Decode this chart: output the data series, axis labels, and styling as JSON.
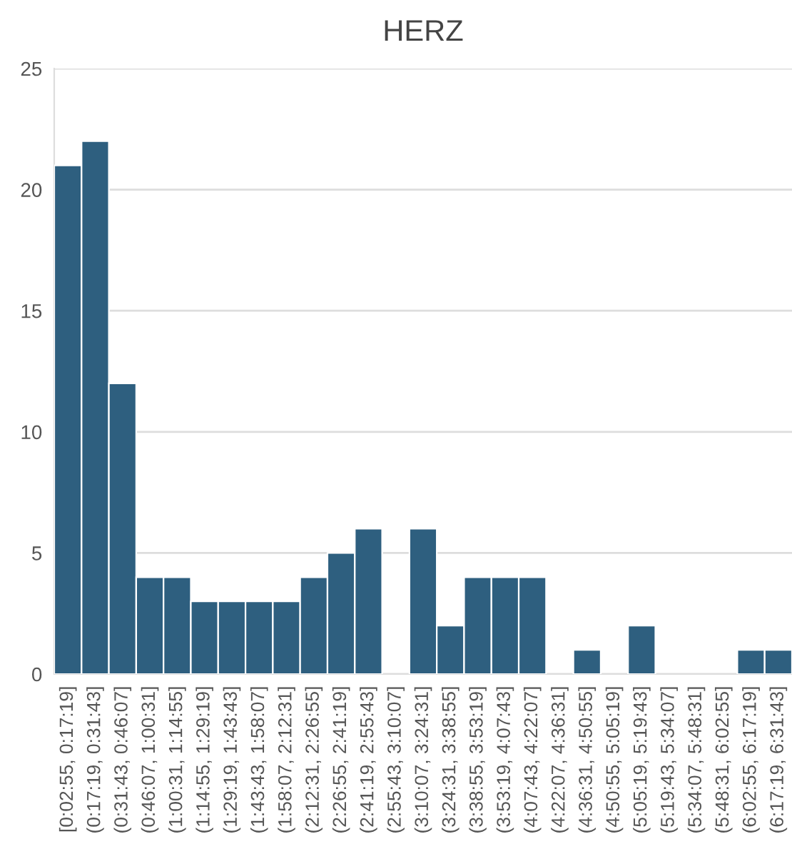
{
  "chart_data": {
    "type": "bar",
    "title": "HERZ",
    "categories": [
      "[0:02:55, 0:17:19]",
      "(0:17:19, 0:31:43]",
      "(0:31:43, 0:46:07]",
      "(0:46:07, 1:00:31]",
      "(1:00:31, 1:14:55]",
      "(1:14:55, 1:29:19]",
      "(1:29:19, 1:43:43]",
      "(1:43:43, 1:58:07]",
      "(1:58:07, 2:12:31]",
      "(2:12:31, 2:26:55]",
      "(2:26:55, 2:41:19]",
      "(2:41:19, 2:55:43]",
      "(2:55:43, 3:10:07]",
      "(3:10:07, 3:24:31]",
      "(3:24:31, 3:38:55]",
      "(3:38:55, 3:53:19]",
      "(3:53:19, 4:07:43]",
      "(4:07:43, 4:22:07]",
      "(4:22:07, 4:36:31]",
      "(4:36:31, 4:50:55]",
      "(4:50:55, 5:05:19]",
      "(5:05:19, 5:19:43]",
      "(5:19:43, 5:34:07]",
      "(5:34:07, 5:48:31]",
      "(5:48:31, 6:02:55]",
      "(6:02:55, 6:17:19]",
      "(6:17:19, 6:31:43]"
    ],
    "values": [
      21,
      22,
      12,
      4,
      4,
      3,
      3,
      3,
      3,
      4,
      5,
      6,
      0,
      6,
      2,
      4,
      4,
      4,
      0,
      1,
      0,
      2,
      0,
      0,
      0,
      1,
      1
    ],
    "color": "#2e5f7f",
    "ylim": [
      0,
      25
    ],
    "yticks": [
      0,
      5,
      10,
      15,
      20,
      25
    ],
    "grid": "y"
  }
}
